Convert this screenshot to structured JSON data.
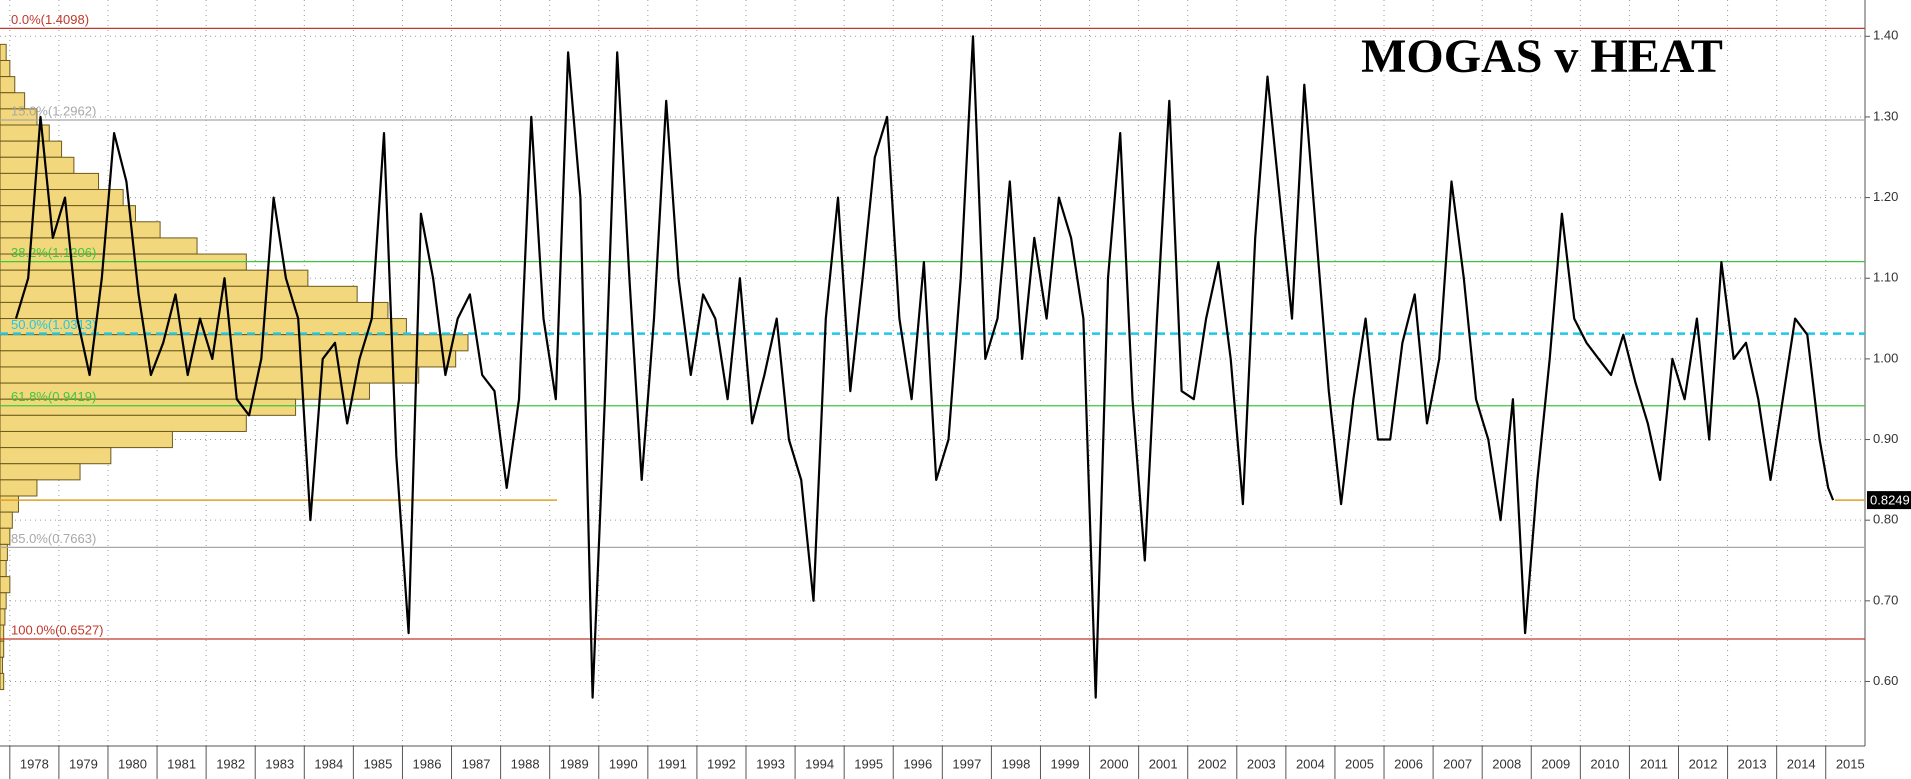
{
  "chart_data": {
    "type": "line",
    "title": "MOGAS v HEAT",
    "color": "#000000",
    "grid": true,
    "xlim": [
      1977.8,
      2015.8
    ],
    "ylim": [
      0.52,
      1.445
    ],
    "xticks": [
      1978,
      1979,
      1980,
      1981,
      1982,
      1983,
      1984,
      1985,
      1986,
      1987,
      1988,
      1989,
      1990,
      1991,
      1992,
      1993,
      1994,
      1995,
      1996,
      1997,
      1998,
      1999,
      2000,
      2001,
      2002,
      2003,
      2004,
      2005,
      2006,
      2007,
      2008,
      2009,
      2010,
      2011,
      2012,
      2013,
      2014,
      2015
    ],
    "yticks": [
      {
        "value": 0.6,
        "label": "0.60"
      },
      {
        "value": 0.7,
        "label": "0.70"
      },
      {
        "value": 0.8,
        "label": "0.80"
      },
      {
        "value": 0.9,
        "label": "0.90"
      },
      {
        "value": 1.0,
        "label": "1.00"
      },
      {
        "value": 1.1,
        "label": "1.10"
      },
      {
        "value": 1.2,
        "label": "1.20"
      },
      {
        "value": 1.3,
        "label": "1.30"
      },
      {
        "value": 1.4,
        "label": "1.40"
      }
    ],
    "x": [
      1978.125,
      1978.375,
      1978.625,
      1978.875,
      1979.125,
      1979.375,
      1979.625,
      1979.875,
      1980.125,
      1980.375,
      1980.625,
      1980.875,
      1981.125,
      1981.375,
      1981.625,
      1981.875,
      1982.125,
      1982.375,
      1982.625,
      1982.875,
      1983.125,
      1983.375,
      1983.625,
      1983.875,
      1984.125,
      1984.375,
      1984.625,
      1984.875,
      1985.125,
      1985.375,
      1985.625,
      1985.875,
      1986.125,
      1986.375,
      1986.625,
      1986.875,
      1987.125,
      1987.375,
      1987.625,
      1987.875,
      1988.125,
      1988.375,
      1988.625,
      1988.875,
      1989.125,
      1989.375,
      1989.625,
      1989.875,
      1990.125,
      1990.375,
      1990.625,
      1990.875,
      1991.125,
      1991.375,
      1991.625,
      1991.875,
      1992.125,
      1992.375,
      1992.625,
      1992.875,
      1993.125,
      1993.375,
      1993.625,
      1993.875,
      1994.125,
      1994.375,
      1994.625,
      1994.875,
      1995.125,
      1995.375,
      1995.625,
      1995.875,
      1996.125,
      1996.375,
      1996.625,
      1996.875,
      1997.125,
      1997.375,
      1997.625,
      1997.875,
      1998.125,
      1998.375,
      1998.625,
      1998.875,
      1999.125,
      1999.375,
      1999.625,
      1999.875,
      2000.125,
      2000.375,
      2000.625,
      2000.875,
      2001.125,
      2001.375,
      2001.625,
      2001.875,
      2002.125,
      2002.375,
      2002.625,
      2002.875,
      2003.125,
      2003.375,
      2003.625,
      2003.875,
      2004.125,
      2004.375,
      2004.625,
      2004.875,
      2005.125,
      2005.375,
      2005.625,
      2005.875,
      2006.125,
      2006.375,
      2006.625,
      2006.875,
      2007.125,
      2007.375,
      2007.625,
      2007.875,
      2008.125,
      2008.375,
      2008.625,
      2008.875,
      2009.125,
      2009.375,
      2009.625,
      2009.875,
      2010.125,
      2010.375,
      2010.625,
      2010.875,
      2011.125,
      2011.375,
      2011.625,
      2011.875,
      2012.125,
      2012.375,
      2012.625,
      2012.875,
      2013.125,
      2013.375,
      2013.625,
      2013.875,
      2014.125,
      2014.375,
      2014.625,
      2014.875,
      2015.05,
      2015.15
    ],
    "values": [
      1.05,
      1.1,
      1.3,
      1.15,
      1.2,
      1.05,
      0.98,
      1.1,
      1.28,
      1.22,
      1.08,
      0.98,
      1.02,
      1.08,
      0.98,
      1.05,
      1.0,
      1.1,
      0.95,
      0.93,
      1.0,
      1.2,
      1.1,
      1.05,
      0.8,
      1.0,
      1.02,
      0.92,
      1.0,
      1.05,
      1.28,
      0.88,
      0.66,
      1.18,
      1.1,
      0.98,
      1.05,
      1.08,
      0.98,
      0.96,
      0.84,
      0.95,
      1.3,
      1.05,
      0.95,
      1.38,
      1.2,
      0.58,
      0.95,
      1.38,
      1.1,
      0.85,
      1.05,
      1.32,
      1.1,
      0.98,
      1.08,
      1.05,
      0.95,
      1.1,
      0.92,
      0.98,
      1.05,
      0.9,
      0.85,
      0.7,
      1.05,
      1.2,
      0.96,
      1.1,
      1.25,
      1.3,
      1.05,
      0.95,
      1.12,
      0.85,
      0.9,
      1.1,
      1.4,
      1.0,
      1.05,
      1.22,
      1.0,
      1.15,
      1.05,
      1.2,
      1.15,
      1.05,
      0.58,
      1.1,
      1.28,
      0.95,
      0.75,
      1.05,
      1.32,
      0.96,
      0.95,
      1.05,
      1.12,
      1.0,
      0.82,
      1.15,
      1.35,
      1.2,
      1.05,
      1.34,
      1.15,
      0.96,
      0.82,
      0.95,
      1.05,
      0.9,
      0.9,
      1.02,
      1.08,
      0.92,
      1.0,
      1.22,
      1.1,
      0.95,
      0.9,
      0.8,
      0.95,
      0.66,
      0.85,
      1.0,
      1.18,
      1.05,
      1.02,
      1.0,
      0.98,
      1.03,
      0.97,
      0.92,
      0.85,
      1.0,
      0.95,
      1.05,
      0.9,
      1.12,
      1.0,
      1.02,
      0.95,
      0.85,
      0.95,
      1.05,
      1.03,
      0.9,
      0.84,
      0.8249
    ],
    "last_value": {
      "value": 0.8249,
      "label": "0.8249"
    },
    "levels": [
      {
        "label": "0.0%(1.4098)",
        "value": 1.4098,
        "color": "#c0392b"
      },
      {
        "label": "15.0%(1.2962)",
        "value": 1.2962,
        "color": "#a8a8a8"
      },
      {
        "label": "38.2%(1.1206)",
        "value": 1.1206,
        "color": "#3cc83c"
      },
      {
        "label": "50.0%(1.0313)",
        "value": 1.0313,
        "color": "#1ec8e6"
      },
      {
        "label": "61.8%(0.9419)",
        "value": 0.9419,
        "color": "#3cc83c"
      },
      {
        "label": "85.0%(0.7663)",
        "value": 0.7663,
        "color": "#a8a8a8"
      },
      {
        "label": "100.0%(0.6527)",
        "value": 0.6527,
        "color": "#c0392b"
      }
    ],
    "profile": {
      "color": "#f3d77c",
      "levels": [
        1.38,
        1.36,
        1.34,
        1.32,
        1.3,
        1.28,
        1.26,
        1.24,
        1.22,
        1.2,
        1.18,
        1.16,
        1.14,
        1.12,
        1.1,
        1.08,
        1.06,
        1.04,
        1.02,
        1.0,
        0.98,
        0.96,
        0.94,
        0.92,
        0.9,
        0.88,
        0.86,
        0.84,
        0.82,
        0.8,
        0.78,
        0.76,
        0.74,
        0.72,
        0.7,
        0.68,
        0.66,
        0.64,
        0.62,
        0.6
      ],
      "counts": [
        5,
        8,
        12,
        20,
        30,
        40,
        50,
        60,
        80,
        100,
        110,
        130,
        160,
        200,
        250,
        290,
        315,
        330,
        380,
        370,
        340,
        300,
        240,
        200,
        140,
        90,
        65,
        30,
        15,
        10,
        8,
        6,
        5,
        8,
        5,
        4,
        3,
        3,
        2,
        3
      ]
    }
  }
}
